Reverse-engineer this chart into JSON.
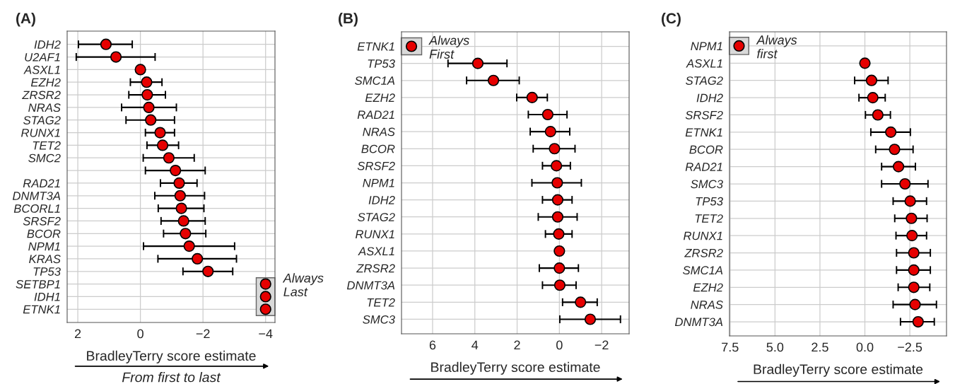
{
  "chart_data": [
    {
      "type": "scatter",
      "orientation": "horizontal",
      "title": "(A)",
      "xlabel": "BradleyTerry score estimate",
      "marker": "circle",
      "grid": true,
      "categories": [
        "IDH2",
        "U2AF1",
        "ASXL1",
        "EZH2",
        "ZRSR2",
        "NRAS",
        "STAG2",
        "RUNX1",
        "TET2",
        "SMC2",
        null,
        "RAD21",
        "DNMT3A",
        "BCORL1",
        "SRSF2",
        "BCOR",
        "NPM1",
        "KRAS",
        "TP53",
        "SETBP1",
        "IDH1",
        "ETNK1"
      ],
      "series": [
        {
          "color": "#e60000",
          "values": [
            1.1,
            0.78,
            0,
            -0.2,
            -0.22,
            -0.27,
            -0.33,
            -0.63,
            -0.71,
            -0.91,
            -1.12,
            -1.24,
            -1.27,
            -1.31,
            -1.38,
            -1.44,
            -1.56,
            -1.82,
            -2.16,
            null,
            null,
            null
          ],
          "errors": [
            [
              0.26,
              1.98
            ],
            [
              -0.47,
              2.05
            ],
            null,
            [
              -0.69,
              0.32
            ],
            [
              -0.8,
              0.37
            ],
            [
              -1.15,
              0.6
            ],
            [
              -1.09,
              0.46
            ],
            [
              -1.09,
              -0.16
            ],
            [
              -1.22,
              -0.21
            ],
            [
              -1.72,
              -0.09
            ],
            [
              -2.07,
              -0.16
            ],
            [
              -1.81,
              -0.64
            ],
            [
              -2.05,
              -0.46
            ],
            [
              -2.03,
              -0.57
            ],
            [
              -2.07,
              -0.66
            ],
            [
              -2.09,
              -0.74
            ],
            [
              -3.01,
              -0.1
            ],
            [
              -3.07,
              -0.56
            ],
            [
              -2.95,
              -1.36
            ],
            null,
            null,
            null
          ]
        },
        {
          "color": "#e60000",
          "values": [
            null,
            null,
            null,
            null,
            null,
            null,
            null,
            null,
            null,
            null,
            null,
            null,
            null,
            null,
            null,
            null,
            null,
            null,
            null,
            -4,
            -4,
            -4
          ]
        }
      ],
      "xlim": [
        2.34,
        -4.3
      ],
      "xticks": [
        2,
        0,
        {
          "value": -2,
          "label": "−2"
        },
        {
          "value": -4,
          "label": "−4"
        }
      ],
      "annotations": [
        "Always\nLast",
        "From first to last"
      ]
    },
    {
      "type": "scatter",
      "orientation": "horizontal",
      "title": "(B)",
      "xlabel": "BradleyTerry score estimate",
      "marker": "circle",
      "grid": true,
      "categories": [
        "ETNK1",
        "TP53",
        "SMC1A",
        "EZH2",
        "RAD21",
        "NRAS",
        "BCOR",
        "SRSF2",
        "NPM1",
        "IDH2",
        "STAG2",
        "RUNX1",
        "ASXL1",
        "ZRSR2",
        "DNMT3A",
        "TET2",
        "SMC3"
      ],
      "series": [
        {
          "color": "#e60000",
          "values": [
            null,
            3.86,
            3.12,
            1.29,
            0.55,
            0.42,
            0.23,
            0.14,
            0.1,
            0.08,
            0.08,
            0.03,
            0,
            0,
            -0.02,
            -1.0,
            -1.46
          ],
          "errors": [
            null,
            [
              2.48,
              5.27
            ],
            [
              1.9,
              4.39
            ],
            [
              0.57,
              2.02
            ],
            [
              -0.36,
              1.47
            ],
            [
              -0.49,
              1.38
            ],
            [
              -0.74,
              1.24
            ],
            [
              -0.52,
              0.8
            ],
            [
              -1.04,
              1.3
            ],
            [
              -0.6,
              0.8
            ],
            [
              -0.84,
              1.0
            ],
            [
              -0.6,
              0.66
            ],
            null,
            [
              -0.9,
              0.95
            ],
            [
              -0.79,
              0.8
            ],
            [
              -1.79,
              -0.15
            ],
            [
              -2.89,
              -0.02
            ]
          ]
        },
        {
          "color": "#e60000",
          "values": [
            7.0,
            null,
            null,
            null,
            null,
            null,
            null,
            null,
            null,
            null,
            null,
            null,
            null,
            null,
            null,
            null,
            null
          ]
        }
      ],
      "xlim": [
        7.47,
        -3.3
      ],
      "xticks": [
        6,
        4,
        2,
        0,
        {
          "value": -2,
          "label": "−2"
        }
      ],
      "annotations": [
        "Always\nFirst"
      ]
    },
    {
      "type": "scatter",
      "orientation": "horizontal",
      "title": "(C)",
      "xlabel": "BradleyTerry score estimate",
      "marker": "circle",
      "grid": true,
      "categories": [
        "NPM1",
        "ASXL1",
        "STAG2",
        "IDH2",
        "SRSF2",
        "ETNK1",
        "BCOR",
        "RAD21",
        "SMC3",
        "TP53",
        "TET2",
        "RUNX1",
        "ZRSR2",
        "SMC1A",
        "EZH2",
        "NRAS",
        "DNMT3A"
      ],
      "series": [
        {
          "color": "#e60000",
          "values": [
            null,
            0,
            -0.37,
            -0.44,
            -0.72,
            -1.44,
            -1.65,
            -1.87,
            -2.23,
            -2.52,
            -2.59,
            -2.62,
            -2.72,
            -2.72,
            -2.72,
            -2.79,
            -2.96
          ],
          "errors": [
            null,
            null,
            [
              -1.29,
              0.57
            ],
            [
              -1.13,
              0.33
            ],
            [
              -1.42,
              -0.03
            ],
            [
              -2.53,
              -0.33
            ],
            [
              -2.68,
              -0.6
            ],
            [
              -2.81,
              -0.93
            ],
            [
              -3.51,
              -0.93
            ],
            [
              -3.43,
              -1.57
            ],
            [
              -3.46,
              -1.66
            ],
            [
              -3.43,
              -1.73
            ],
            [
              -3.64,
              -1.76
            ],
            [
              -3.64,
              -1.76
            ],
            [
              -3.61,
              -1.85
            ],
            [
              -3.98,
              -1.57
            ],
            [
              -3.86,
              -1.98
            ]
          ]
        },
        {
          "color": "#e60000",
          "values": [
            7.0,
            null,
            null,
            null,
            null,
            null,
            null,
            null,
            null,
            null,
            null,
            null,
            null,
            null,
            null,
            null,
            null
          ]
        }
      ],
      "xlim": [
        7.53,
        -4.54
      ],
      "xticks": [
        {
          "value": 7.5,
          "label": "7.5"
        },
        {
          "value": 5,
          "label": "5.0"
        },
        {
          "value": 2.5,
          "label": "2.5"
        },
        {
          "value": 0,
          "label": "0.0"
        },
        {
          "value": -2.5,
          "label": "−2.5"
        }
      ],
      "annotations": [
        "Always\nfirst"
      ]
    }
  ]
}
